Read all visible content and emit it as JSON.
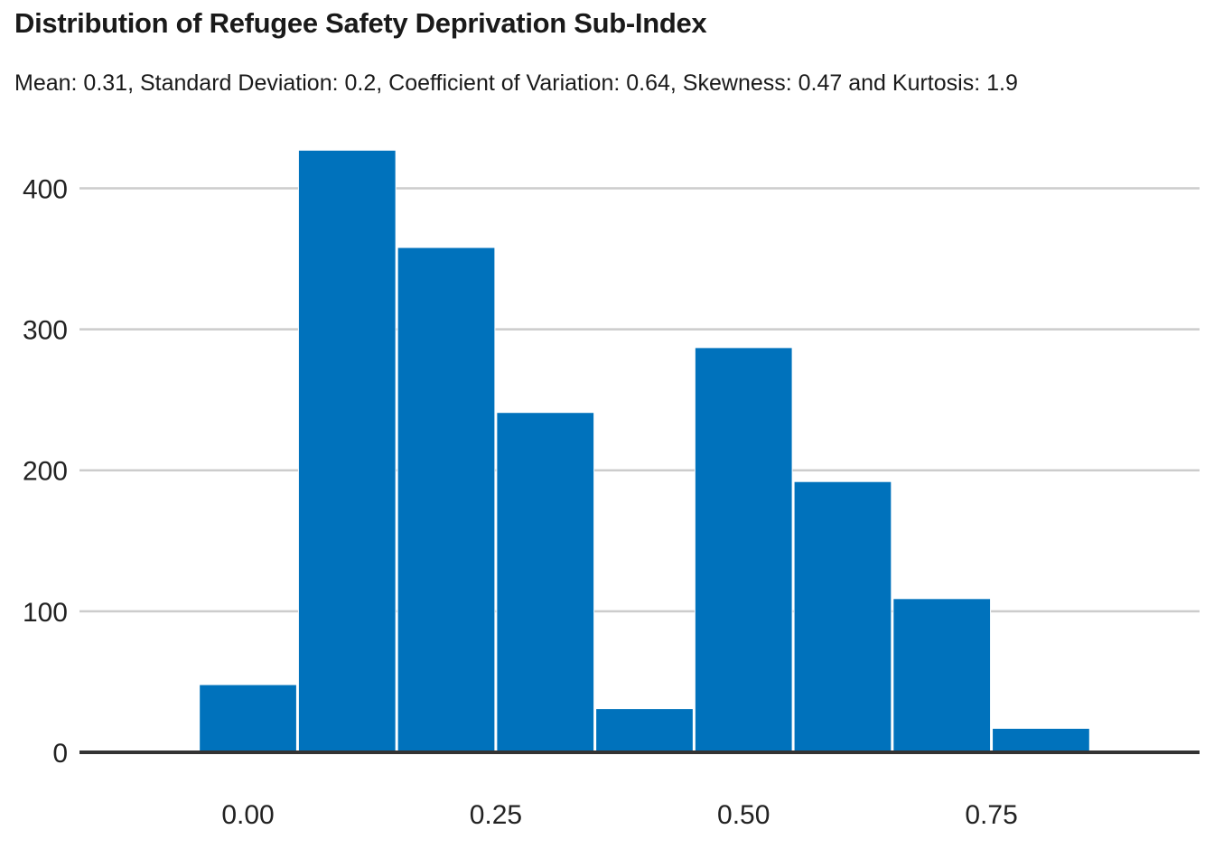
{
  "title": "Distribution of Refugee Safety Deprivation  Sub-Index",
  "subtitle": "Mean: 0.31, Standard Deviation: 0.2, Coefficient of Variation: 0.64, Skewness: 0.47 and Kurtosis: 1.9",
  "colors": {
    "bar": "#0072bc",
    "grid": "#cccccc",
    "axis": "#333333",
    "text": "#222222"
  },
  "chart_data": {
    "type": "bar",
    "subtype": "histogram",
    "bins": [
      {
        "x0": -0.05,
        "x1": 0.05,
        "count": 48
      },
      {
        "x0": 0.05,
        "x1": 0.15,
        "count": 427
      },
      {
        "x0": 0.15,
        "x1": 0.25,
        "count": 358
      },
      {
        "x0": 0.25,
        "x1": 0.35,
        "count": 241
      },
      {
        "x0": 0.35,
        "x1": 0.45,
        "count": 31
      },
      {
        "x0": 0.45,
        "x1": 0.55,
        "count": 287
      },
      {
        "x0": 0.55,
        "x1": 0.65,
        "count": 192
      },
      {
        "x0": 0.65,
        "x1": 0.75,
        "count": 109
      },
      {
        "x0": 0.75,
        "x1": 0.85,
        "count": 17
      }
    ],
    "xticks": [
      0.0,
      0.25,
      0.5,
      0.75
    ],
    "xtick_labels": [
      "0.00",
      "0.25",
      "0.50",
      "0.75"
    ],
    "yticks": [
      0,
      100,
      200,
      300,
      400
    ],
    "ytick_labels": [
      "0",
      "100",
      "200",
      "300",
      "400"
    ],
    "xlim": [
      -0.17,
      0.96
    ],
    "ylim": [
      0,
      440
    ],
    "grid": "horizontal",
    "legend": "none"
  }
}
